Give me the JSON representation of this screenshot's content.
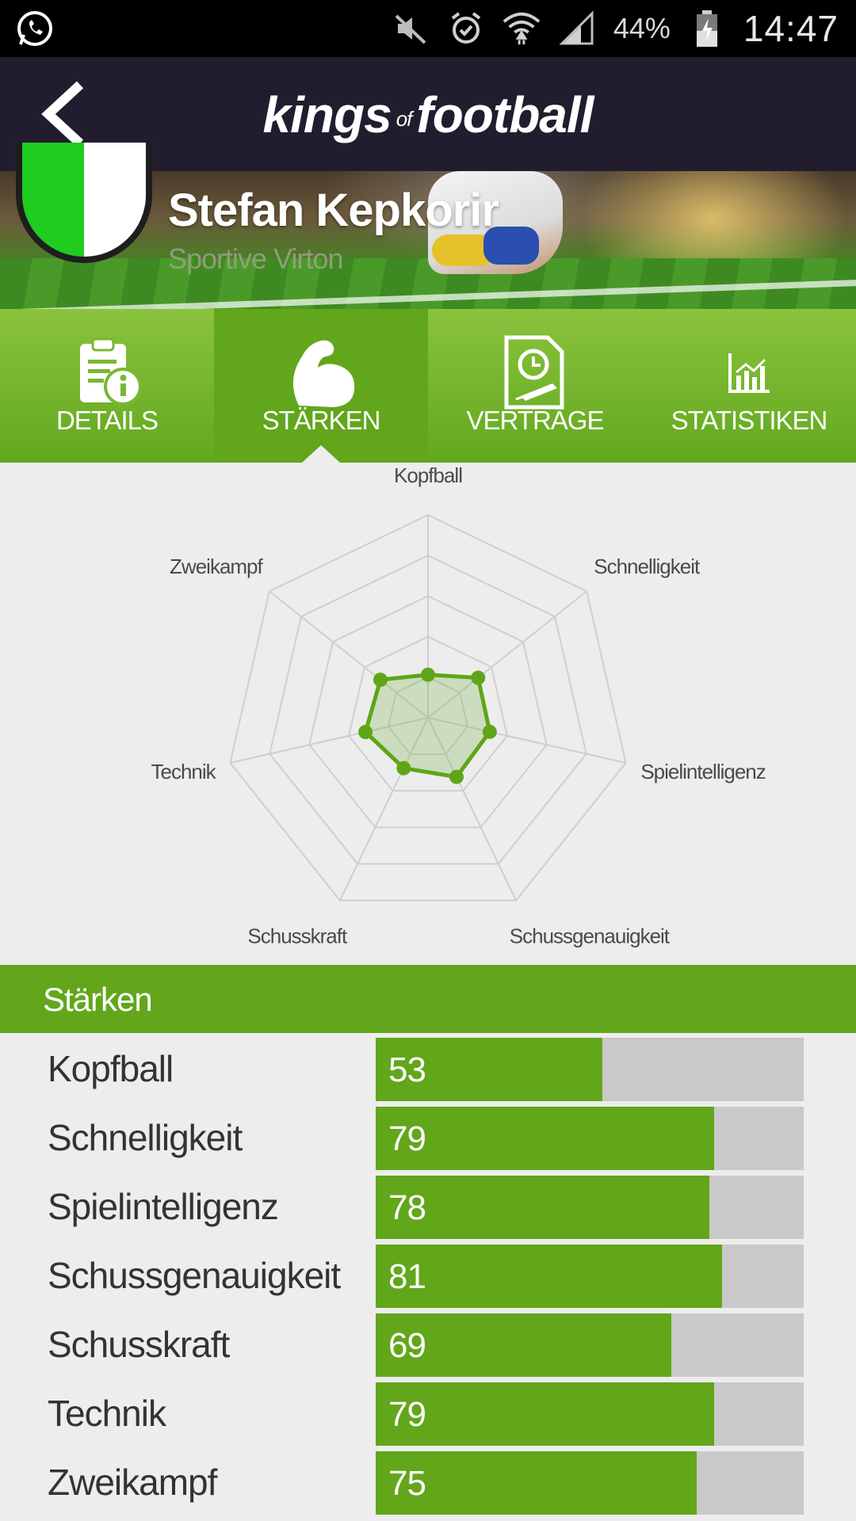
{
  "status_bar": {
    "battery": "44%",
    "time": "14:47",
    "icons": [
      "whatsapp-icon",
      "mute-icon",
      "alarm-icon",
      "wifi-icon",
      "signal-icon",
      "battery-icon"
    ]
  },
  "app_bar": {
    "logo_part1": "kings",
    "logo_part2": "of",
    "logo_part3": "football"
  },
  "player": {
    "name": "Stefan Kepkorir",
    "club": "Sportive Virton"
  },
  "tabs": [
    {
      "label": "DETAILS",
      "icon": "details-info-icon",
      "active": false
    },
    {
      "label": "STÄRKEN",
      "icon": "flexed-bicep-icon",
      "active": true
    },
    {
      "label": "VERTRÄGE",
      "icon": "contract-clock-icon",
      "active": false
    },
    {
      "label": "STATISTIKEN",
      "icon": "chart-icon",
      "active": false
    }
  ],
  "section": {
    "title": "Stärken"
  },
  "colors": {
    "accent": "#63a61b",
    "appbar": "#221d2e",
    "track": "#c9c9c9"
  },
  "chart_data": {
    "type": "radar",
    "categories": [
      "Kopfball",
      "Schnelligkeit",
      "Spielintelligenz",
      "Schussgenauigkeit",
      "Schusskraft",
      "Technik",
      "Zweikampf"
    ],
    "values": [
      53,
      79,
      78,
      81,
      69,
      79,
      75
    ],
    "grid": true
  },
  "stats": [
    {
      "label": "Kopfball",
      "value": "53"
    },
    {
      "label": "Schnelligkeit",
      "value": "79"
    },
    {
      "label": "Spielintelligenz",
      "value": "78"
    },
    {
      "label": "Schussgenauigkeit",
      "value": "81"
    },
    {
      "label": "Schusskraft",
      "value": "69"
    },
    {
      "label": "Technik",
      "value": "79"
    },
    {
      "label": "Zweikampf",
      "value": "75"
    }
  ]
}
